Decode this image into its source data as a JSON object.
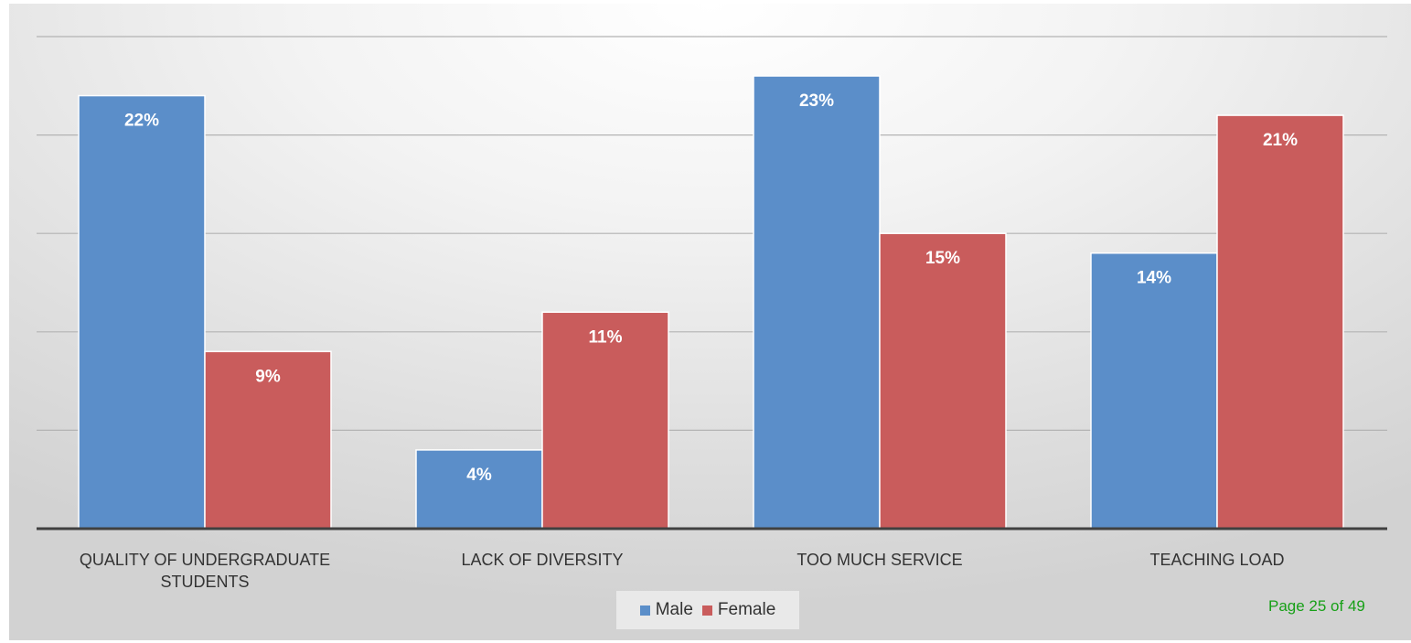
{
  "chart_data": {
    "type": "bar",
    "categories": [
      "QUALITY OF UNDERGRADUATE STUDENTS",
      "LACK OF DIVERSITY",
      "TOO MUCH SERVICE",
      "TEACHING LOAD"
    ],
    "series": [
      {
        "name": "Male",
        "values": [
          22,
          4,
          23,
          14
        ],
        "labels": [
          "22%",
          "4%",
          "23%",
          "14%"
        ],
        "color": "#5b8ec9"
      },
      {
        "name": "Female",
        "values": [
          9,
          11,
          15,
          21
        ],
        "labels": [
          "9%",
          "11%",
          "15%",
          "21%"
        ],
        "color": "#c95c5c"
      }
    ],
    "title": "",
    "xlabel": "",
    "ylabel": "",
    "ylim": [
      0,
      25
    ],
    "y_gridline_step": 5,
    "grid": true,
    "legend_position": "bottom",
    "data_labels": true
  },
  "legend": {
    "male_label": "Male",
    "female_label": "Female"
  },
  "footer": {
    "page_number": "Page 25 of 49"
  }
}
